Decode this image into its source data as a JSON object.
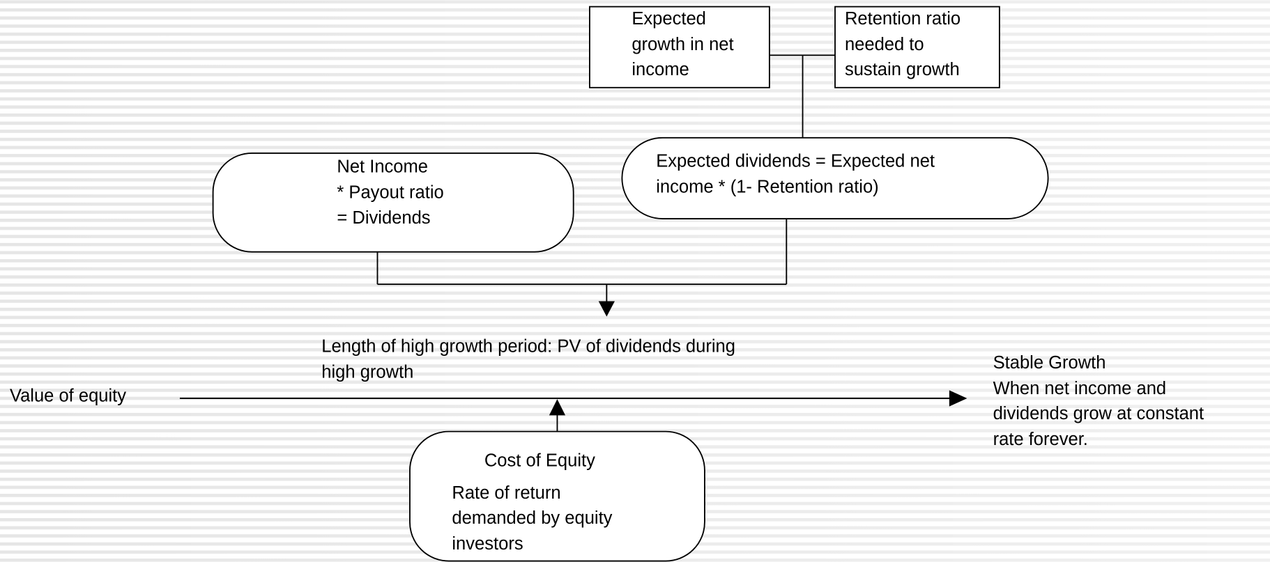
{
  "nodes": [
    {
      "lines": [
        "Expected",
        "growth in net",
        "income"
      ]
    },
    {
      "lines": [
        "Retention ratio",
        "needed to",
        "sustain growth"
      ]
    },
    {
      "lines": [
        "Expected dividends = Expected net",
        "income * (1- Retention ratio)"
      ]
    },
    {
      "lines": [
        "Net Income",
        "* Payout ratio",
        "= Dividends"
      ]
    },
    {
      "lines": [
        "Length of high growth period: PV of dividends during",
        "high growth"
      ]
    },
    {
      "lines": [
        "Value of equity"
      ]
    },
    {
      "lines": [
        "Cost of Equity",
        "Rate of return",
        "demanded by equity",
        "investors"
      ]
    },
    {
      "lines": [
        "Stable Growth",
        "When net income and",
        "dividends grow at constant",
        "rate forever."
      ]
    }
  ]
}
